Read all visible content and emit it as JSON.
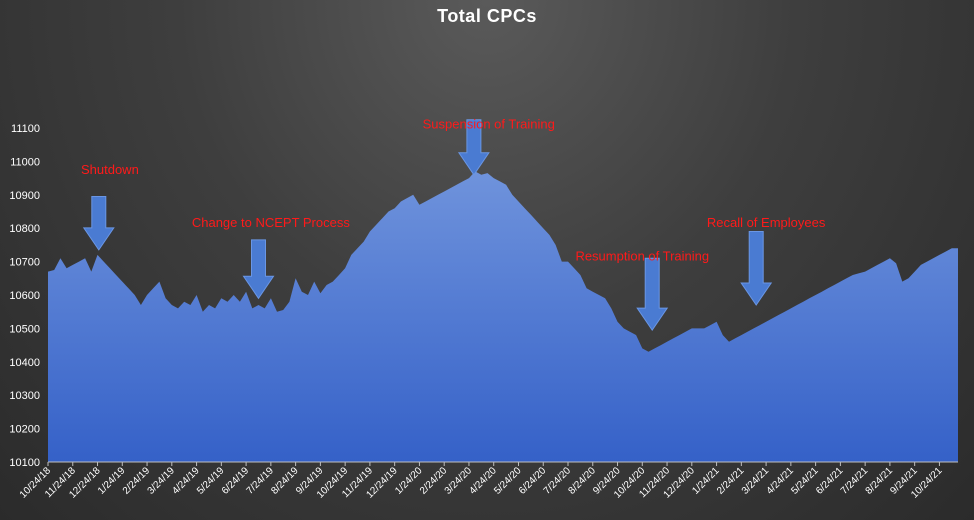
{
  "chart_data": {
    "type": "area",
    "title": "Total CPCs",
    "xlabel": "",
    "ylabel": "",
    "ylim": [
      10100,
      11100
    ],
    "yticks": [
      10100,
      10200,
      10300,
      10400,
      10500,
      10600,
      10700,
      10800,
      10900,
      11000,
      11100
    ],
    "categories": [
      "10/24/18",
      "11/24/18",
      "12/24/18",
      "1/24/19",
      "2/24/19",
      "3/24/19",
      "4/24/19",
      "5/24/19",
      "6/24/19",
      "7/24/19",
      "8/24/19",
      "9/24/19",
      "10/24/19",
      "11/24/19",
      "12/24/19",
      "1/24/20",
      "2/24/20",
      "3/24/20",
      "4/24/20",
      "5/24/20",
      "6/24/20",
      "7/24/20",
      "8/24/20",
      "9/24/20",
      "10/24/20",
      "11/24/20",
      "12/24/20",
      "1/24/21",
      "2/24/21",
      "3/24/21",
      "4/24/21",
      "5/24/21",
      "6/24/21",
      "7/24/21",
      "8/24/21",
      "9/24/21",
      "10/24/21"
    ],
    "series": [
      {
        "x": [
          0,
          0.25,
          0.5,
          0.75,
          1,
          1.25,
          1.5,
          1.75,
          2,
          2.25,
          2.5,
          2.75,
          3,
          3.25,
          3.5,
          3.75,
          4,
          4.25,
          4.5,
          4.75,
          5,
          5.25,
          5.5,
          5.75,
          6,
          6.25,
          6.5,
          6.75,
          7,
          7.25,
          7.5,
          7.75,
          8,
          8.25,
          8.5,
          8.75,
          9,
          9.25,
          9.5,
          9.75,
          10,
          10.25,
          10.5,
          10.75,
          11,
          11.25,
          11.5,
          11.75,
          12,
          12.25,
          12.5,
          12.75,
          13,
          13.25,
          13.5,
          13.75,
          14,
          14.25,
          14.5,
          14.75,
          15,
          15.25,
          15.5,
          15.75,
          16,
          16.25,
          16.5,
          16.75,
          17,
          17.25,
          17.5,
          17.75,
          18,
          18.25,
          18.5,
          18.75,
          19,
          19.25,
          19.5,
          19.75,
          20,
          20.25,
          20.5,
          20.75,
          21,
          21.25,
          21.5,
          21.75,
          22,
          22.25,
          22.5,
          22.75,
          23,
          23.25,
          23.5,
          23.75,
          24,
          24.25,
          24.5,
          24.75,
          25,
          25.25,
          25.5,
          25.75,
          26,
          26.25,
          26.5,
          26.75,
          27,
          27.25,
          27.5,
          27.75,
          28,
          28.25,
          28.5,
          28.75,
          29,
          29.25,
          29.5,
          29.75,
          30,
          30.25,
          30.5,
          30.75,
          31,
          31.25,
          31.5,
          31.75,
          32,
          32.25,
          32.5,
          32.75,
          33,
          33.25,
          33.5,
          33.75,
          34,
          34.25,
          34.5,
          34.75,
          35,
          35.25,
          35.5,
          35.75,
          36,
          36.25,
          36.5,
          36.75
        ],
        "values": [
          10670,
          10675,
          10710,
          10680,
          10690,
          10700,
          10710,
          10670,
          10720,
          10700,
          10680,
          10660,
          10640,
          10620,
          10600,
          10570,
          10600,
          10620,
          10640,
          10590,
          10570,
          10560,
          10580,
          10570,
          10600,
          10550,
          10570,
          10560,
          10590,
          10580,
          10600,
          10580,
          10610,
          10560,
          10570,
          10560,
          10590,
          10550,
          10555,
          10580,
          10650,
          10610,
          10600,
          10640,
          10605,
          10630,
          10640,
          10660,
          10680,
          10720,
          10740,
          10760,
          10790,
          10810,
          10830,
          10850,
          10860,
          10880,
          10890,
          10900,
          10870,
          10880,
          10890,
          10900,
          10910,
          10920,
          10930,
          10940,
          10950,
          10970,
          10960,
          10965,
          10950,
          10940,
          10930,
          10900,
          10880,
          10860,
          10840,
          10820,
          10800,
          10780,
          10750,
          10700,
          10700,
          10680,
          10660,
          10620,
          10610,
          10600,
          10590,
          10560,
          10520,
          10500,
          10490,
          10480,
          10440,
          10430,
          10440,
          10450,
          10460,
          10470,
          10480,
          10490,
          10500,
          10500,
          10500,
          10510,
          10520,
          10480,
          10460,
          10470,
          10480,
          10490,
          10500,
          10510,
          10520,
          10530,
          10540,
          10550,
          10560,
          10570,
          10580,
          10590,
          10600,
          10610,
          10620,
          10630,
          10640,
          10650,
          10660,
          10665,
          10670,
          10680,
          10690,
          10700,
          10710,
          10695,
          10640,
          10650,
          10670,
          10690,
          10700,
          10710,
          10720,
          10730,
          10740,
          10740
        ]
      }
    ],
    "annotations": [
      {
        "text": "Shutdown",
        "label_x": 2.5,
        "label_y": 10975,
        "arrow_x": 2.05,
        "arrow_y_from": 10895,
        "arrow_y_to": 10735
      },
      {
        "text": "Change to NCEPT Process",
        "label_x": 9.0,
        "label_y": 10815,
        "arrow_x": 8.5,
        "arrow_y_from": 10765,
        "arrow_y_to": 10590
      },
      {
        "text": "Suspension of Training",
        "label_x": 17.8,
        "label_y": 11110,
        "arrow_x": 17.2,
        "arrow_y_from": 11125,
        "arrow_y_to": 10960
      },
      {
        "text": "Resumption of Training",
        "label_x": 24.0,
        "label_y": 10715,
        "arrow_x": 24.4,
        "arrow_y_from": 10710,
        "arrow_y_to": 10495
      },
      {
        "text": "Recall of Employees",
        "label_x": 29.0,
        "label_y": 10815,
        "arrow_x": 28.6,
        "arrow_y_from": 10790,
        "arrow_y_to": 10570
      }
    ],
    "colors": {
      "area_top": "#6f93dc",
      "area_bottom": "#3561c8",
      "arrow": "#4a7bd2",
      "arrow_stroke": "#6a96e4",
      "annotation_text": "#ff1a1a",
      "axis": "#bfbfbf",
      "text": "#ffffff"
    },
    "grid": false,
    "legend": "none"
  }
}
